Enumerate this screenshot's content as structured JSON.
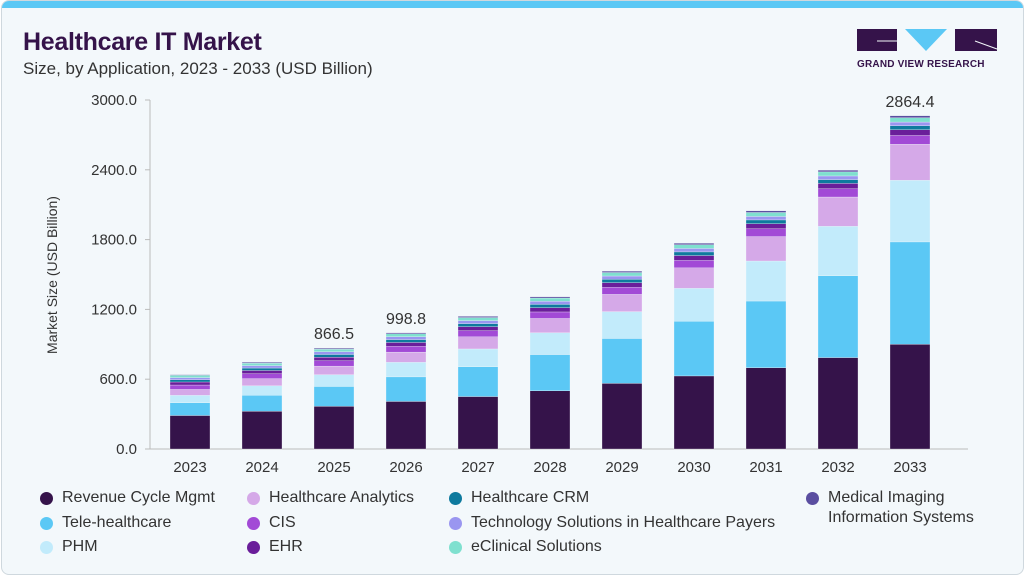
{
  "header": {
    "title": "Healthcare IT Market",
    "subtitle": "Size, by Application, 2023 - 2033 (USD Billion)",
    "logo_text": "GRAND VIEW RESEARCH"
  },
  "chart_data": {
    "type": "bar",
    "stacked": true,
    "ylabel": "Market Size (USD Billion)",
    "xlabel": "",
    "ylim": [
      0,
      3000
    ],
    "yticks": [
      "0.0",
      "600.0",
      "1200.0",
      "1800.0",
      "2400.0",
      "3000.0"
    ],
    "categories": [
      "2023",
      "2024",
      "2025",
      "2026",
      "2027",
      "2028",
      "2029",
      "2030",
      "2031",
      "2032",
      "2033"
    ],
    "series": [
      {
        "name": "Revenue Cycle Mgmt",
        "color": "#35134a",
        "values": [
          288,
          325,
          366.5,
          408.8,
          451,
          500,
          564,
          628,
          699,
          786,
          900
        ]
      },
      {
        "name": "Tele-healthcare",
        "color": "#5bc8f5",
        "values": [
          109,
          137,
          171,
          211,
          256,
          312,
          386,
          471,
          573,
          704,
          880
        ]
      },
      {
        "name": "PHM",
        "color": "#c2ebfb",
        "values": [
          64,
          81,
          101,
          125,
          153,
          187,
          231,
          282,
          344,
          424,
          530
        ]
      },
      {
        "name": "Healthcare Analytics",
        "color": "#d5a9e8",
        "values": [
          51,
          62,
          74,
          88,
          104,
          123,
          148,
          176,
          210,
          252,
          310
        ]
      },
      {
        "name": "CIS",
        "color": "#a24ad6",
        "values": [
          38,
          42,
          46,
          50,
          53,
          56,
          61,
          64,
          67,
          71,
          75
        ]
      },
      {
        "name": "EHR",
        "color": "#6a1e9a",
        "values": [
          26,
          28,
          31,
          33,
          35,
          37,
          40,
          42,
          44,
          46,
          49.4
        ]
      },
      {
        "name": "Healthcare CRM",
        "color": "#0e7a9e",
        "values": [
          19,
          21,
          23,
          25,
          26,
          28,
          29,
          31,
          32,
          33,
          34
        ]
      },
      {
        "name": "Technology Solutions in Healthcare Payers",
        "color": "#9a96f0",
        "values": [
          19,
          21,
          23,
          24,
          26,
          27,
          28,
          30,
          30,
          31,
          32
        ]
      },
      {
        "name": "eClinical Solutions",
        "color": "#7fe0cf",
        "values": [
          19,
          21,
          23,
          25,
          26,
          28,
          30,
          32,
          34,
          35,
          37
        ]
      },
      {
        "name": "Medical Imaging Information Systems",
        "color": "#5a4ea0",
        "values": [
          6,
          7,
          8,
          9,
          10,
          10,
          12,
          13,
          14,
          15,
          17
        ]
      }
    ],
    "data_labels": [
      {
        "category": "2025",
        "label": "866.5"
      },
      {
        "category": "2026",
        "label": "998.8"
      },
      {
        "category": "2033",
        "label": "2864.4"
      }
    ],
    "grid": false,
    "legend_position": "bottom"
  }
}
